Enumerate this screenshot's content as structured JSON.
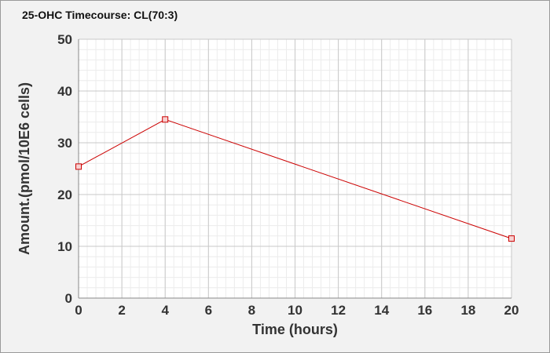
{
  "chart_data": {
    "type": "line",
    "title": "25-OHC Timecourse: CL(70:3)",
    "xlabel": "Time (hours)",
    "ylabel": "Amount.(pmol/10E6 cells)",
    "xlim": [
      0,
      20
    ],
    "ylim": [
      0,
      50
    ],
    "x_ticks": [
      0,
      2,
      4,
      6,
      8,
      10,
      12,
      14,
      16,
      18,
      20
    ],
    "y_ticks": [
      0,
      10,
      20,
      30,
      40,
      50
    ],
    "grid": true,
    "legend": "none",
    "series": [
      {
        "color": "#cc0000",
        "marker": "square",
        "x": [
          0,
          4,
          20
        ],
        "y": [
          25.4,
          34.5,
          11.5
        ]
      }
    ]
  }
}
